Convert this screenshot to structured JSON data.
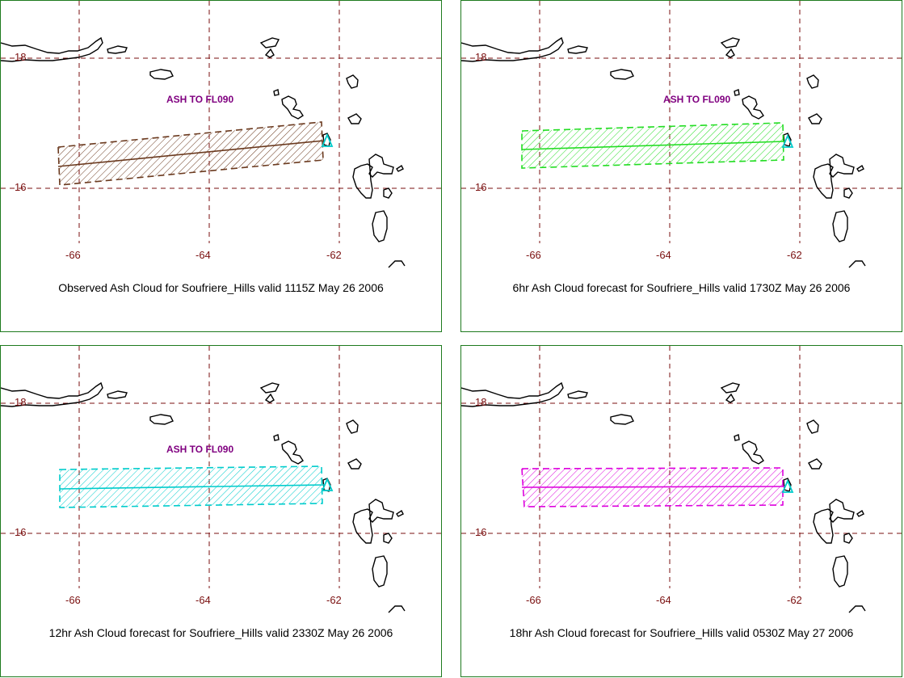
{
  "colors": {
    "frame": "#1e7a1e",
    "grid": "#7a0f0f",
    "coast": "#000000",
    "note": "#800080",
    "volcano": "#00cccc"
  },
  "grid": {
    "lat_labels": [
      "18",
      "16"
    ],
    "lon_labels": [
      "-66",
      "-64",
      "-62"
    ]
  },
  "panels": [
    {
      "caption": "Observed Ash Cloud for Soufriere_Hills valid 1115Z May 26 2006",
      "note": "ASH TO FL090",
      "cloud_color": "#6b3a1f",
      "volcano_icon": "triangle-icon"
    },
    {
      "caption": "6hr Ash Cloud forecast for Soufriere_Hills valid 1730Z May 26 2006",
      "note": "ASH TO FL090",
      "cloud_color": "#22dd22",
      "volcano_icon": "triangle-icon"
    },
    {
      "caption": "12hr Ash Cloud forecast for Soufriere_Hills valid 2330Z May 26 2006",
      "note": "ASH TO FL090",
      "cloud_color": "#00cccc",
      "volcano_icon": "triangle-icon"
    },
    {
      "caption": "18hr Ash Cloud forecast for Soufriere_Hills valid 0530Z May 27 2006",
      "note": "",
      "cloud_color": "#dd00dd",
      "volcano_icon": "triangle-icon"
    }
  ]
}
